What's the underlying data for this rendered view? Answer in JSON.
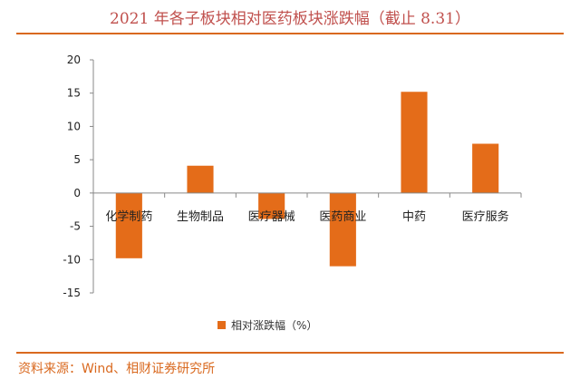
{
  "title": "2021 年各子板块相对医药板块涨跌幅（截止 8.31）",
  "source": "资料来源：Wind、相财证券研究所",
  "colors": {
    "bar": "#e46c19",
    "rule": "#d9691f",
    "title": "#c0504d"
  },
  "chart_data": {
    "type": "bar",
    "categories": [
      "化学制药",
      "生物制品",
      "医疗器械",
      "医药商业",
      "中药",
      "医疗服务"
    ],
    "series": [
      {
        "name": "相对涨跌幅（%）",
        "values": [
          -9.8,
          4.1,
          -3.9,
          -11.0,
          15.2,
          7.4
        ]
      }
    ],
    "ylim": [
      -15,
      20
    ],
    "yticks": [
      -15,
      -10,
      -5,
      0,
      5,
      10,
      15,
      20
    ],
    "legend": "bottom"
  }
}
